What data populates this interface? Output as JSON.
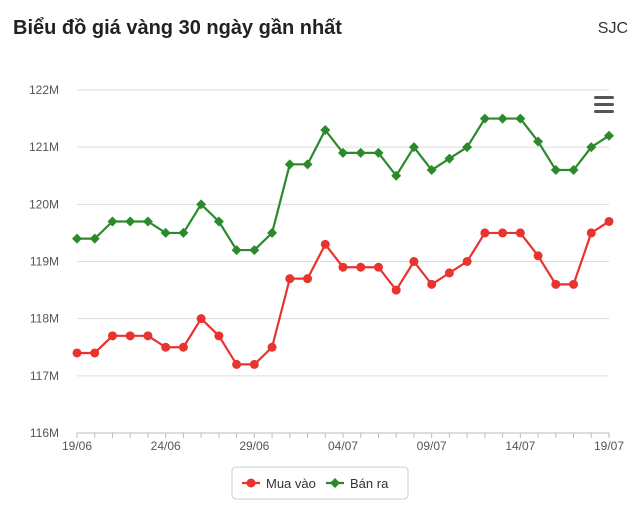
{
  "header": {
    "title": "Biểu đồ giá vàng 30 ngày gần nhất",
    "brand": "SJC"
  },
  "icons": {
    "menu": "hamburger-menu-icon"
  },
  "chart_data": {
    "type": "line",
    "title": "Biểu đồ giá vàng 30 ngày gần nhất",
    "xlabel": "",
    "ylabel": "",
    "ylim": [
      116,
      122
    ],
    "yticks": [
      116,
      117,
      118,
      119,
      120,
      121,
      122
    ],
    "ytick_labels": [
      "116M",
      "117M",
      "118M",
      "119M",
      "120M",
      "121M",
      "122M"
    ],
    "xtick_labels": [
      "19/06",
      "24/06",
      "29/06",
      "04/07",
      "09/07",
      "14/07",
      "19/07"
    ],
    "xtick_index": [
      0,
      5,
      10,
      15,
      20,
      25,
      30
    ],
    "grid": true,
    "legend_position": "bottom-center",
    "series": [
      {
        "name": "Mua vào",
        "color": "#e8332e",
        "marker": "circle",
        "values": [
          117.4,
          117.4,
          117.7,
          117.7,
          117.7,
          117.5,
          117.5,
          118.0,
          117.7,
          117.2,
          117.2,
          117.5,
          118.7,
          118.7,
          119.3,
          118.9,
          118.9,
          118.9,
          118.5,
          119.0,
          118.6,
          118.8,
          119.0,
          119.5,
          119.5,
          119.5,
          119.1,
          118.6,
          118.6,
          119.5,
          119.7
        ]
      },
      {
        "name": "Bán ra",
        "color": "#2b8a2b",
        "marker": "diamond",
        "values": [
          119.4,
          119.4,
          119.7,
          119.7,
          119.7,
          119.5,
          119.5,
          120.0,
          119.7,
          119.2,
          119.2,
          119.5,
          120.7,
          120.7,
          121.3,
          120.9,
          120.9,
          120.9,
          120.5,
          121.0,
          120.6,
          120.8,
          121.0,
          121.5,
          121.5,
          121.5,
          121.1,
          120.6,
          120.6,
          121.0,
          121.2
        ]
      }
    ]
  }
}
